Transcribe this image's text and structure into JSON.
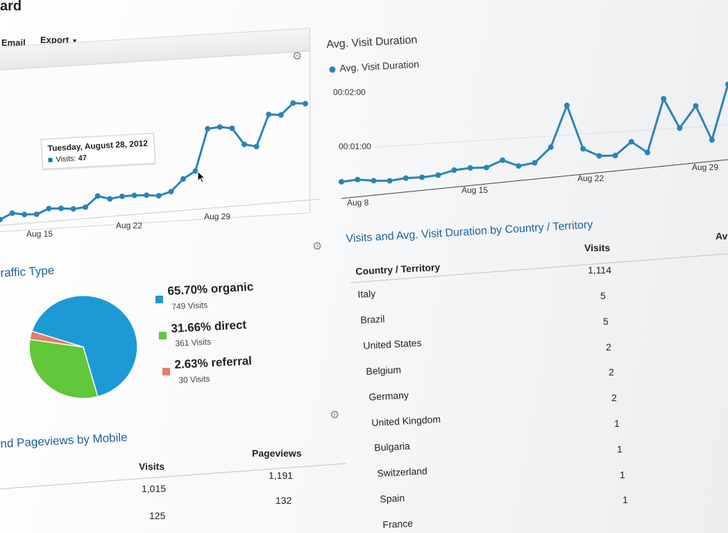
{
  "header": {
    "title_fragment": "ard",
    "email_label": "Email",
    "export_label": "Export"
  },
  "visits_chart": {
    "tooltip_date": "Tuesday, August 28, 2012",
    "tooltip_label": "Visits:",
    "tooltip_value": "47",
    "chart_data": {
      "type": "line",
      "x_ticks": [
        "Aug 15",
        "Aug 22",
        "Aug 29"
      ],
      "series": [
        {
          "values": [
            5,
            12,
            9,
            8,
            14,
            13,
            11,
            12,
            25,
            20,
            22,
            22,
            21,
            19,
            23,
            38,
            47,
            100,
            101,
            98,
            76,
            72,
            112,
            110,
            124,
            122
          ]
        }
      ],
      "line_color": "#2a83b8"
    }
  },
  "duration_chart": {
    "title": "Avg. Visit Duration",
    "legend": "Avg. Visit Duration",
    "y_ticks": [
      "00:02:00",
      "00:01:00"
    ],
    "x_ticks": [
      "Aug 8",
      "Aug 15",
      "Aug 22",
      "Aug 29"
    ],
    "chart_data": {
      "type": "line",
      "series": [
        {
          "name": "Avg. Visit Duration",
          "values_seconds": [
            6,
            8,
            3,
            0,
            3,
            2,
            4,
            12,
            14,
            12,
            25,
            10,
            14,
            45,
            132,
            36,
            18,
            16,
            43,
            17,
            130,
            64,
            109,
            33,
            150
          ]
        }
      ],
      "line_color": "#2a83b8"
    }
  },
  "traffic": {
    "title": "raffic Type",
    "chart_data": {
      "type": "pie",
      "slices": [
        {
          "label": "organic",
          "percent": 65.7,
          "visits": 749,
          "color": "#1d9ad6"
        },
        {
          "label": "direct",
          "percent": 31.66,
          "visits": 361,
          "color": "#61c73b"
        },
        {
          "label": "referral",
          "percent": 2.63,
          "visits": 30,
          "color": "#e0806a"
        }
      ]
    },
    "legend": [
      {
        "main": "65.70% organic",
        "sub": "749 Visits"
      },
      {
        "main": "31.66% direct",
        "sub": "361 Visits"
      },
      {
        "main": "2.63% referral",
        "sub": "30 Visits"
      }
    ]
  },
  "mobile": {
    "title": "nd Pageviews by Mobile",
    "col_visits": "Visits",
    "col_pageviews": "Pageviews",
    "rows": [
      {
        "visits": "1,015",
        "pageviews": "1,191"
      },
      {
        "visits": "125",
        "pageviews": "132"
      }
    ]
  },
  "country": {
    "title": "Visits and Avg. Visit Duration by Country / Territory",
    "col_country": "Country / Territory",
    "col_visits": "Visits",
    "col_third": "Av",
    "total_visits": "1,114",
    "rows": [
      {
        "country": "Italy",
        "visits": "5"
      },
      {
        "country": "Brazil",
        "visits": "5"
      },
      {
        "country": "United States",
        "visits": "2"
      },
      {
        "country": "Belgium",
        "visits": "2"
      },
      {
        "country": "Germany",
        "visits": "2"
      },
      {
        "country": "United Kingdom",
        "visits": "1"
      },
      {
        "country": "Bulgaria",
        "visits": "1"
      },
      {
        "country": "Switzerland",
        "visits": "1"
      },
      {
        "country": "Spain",
        "visits": "1"
      },
      {
        "country": "France",
        "visits": ""
      }
    ]
  },
  "icons": {
    "settings": "gear-icon",
    "cursor": "cursor-icon"
  }
}
